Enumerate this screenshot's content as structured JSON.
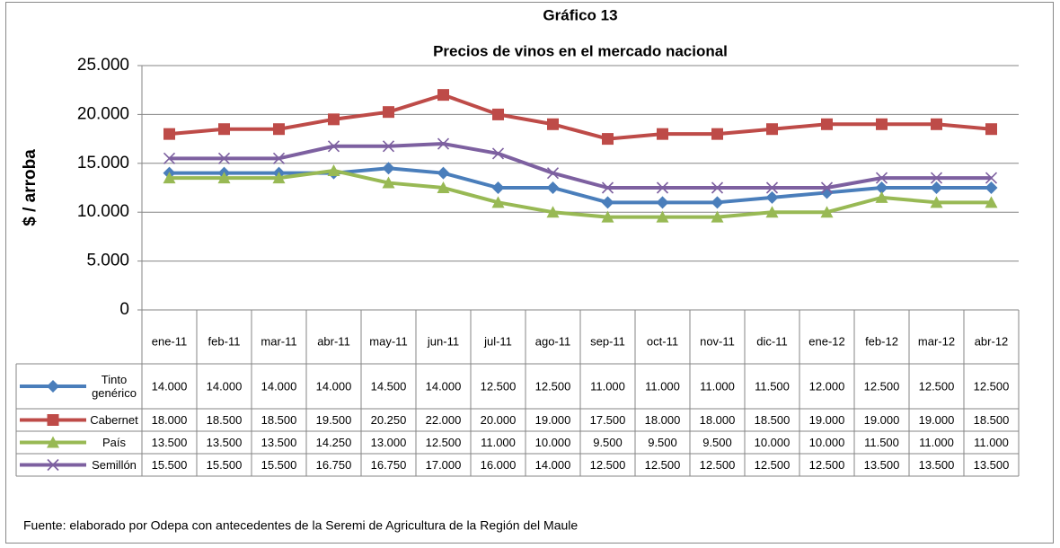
{
  "chart_data": {
    "type": "line",
    "title": "Gráfico 13",
    "subtitle": "Precios de vinos en el mercado nacional",
    "y_label": "$ / arroba",
    "source": "Fuente: elaborado por Odepa con antecedentes de la Seremi de Agricultura de la Región del Maule",
    "categories": [
      "ene-11",
      "feb-11",
      "mar-11",
      "abr-11",
      "may-11",
      "jun-11",
      "jul-11",
      "ago-11",
      "sep-11",
      "oct-11",
      "nov-11",
      "dic-11",
      "ene-12",
      "feb-12",
      "mar-12",
      "abr-12"
    ],
    "ylim": [
      0,
      25000
    ],
    "yticks": [
      0,
      {
        "value": 5000,
        "label": "5.000"
      },
      {
        "value": 10000,
        "label": "10.000"
      },
      {
        "value": 15000,
        "label": "15.000"
      },
      {
        "value": 20000,
        "label": "20.000"
      },
      {
        "value": 25000,
        "label": "25.000"
      }
    ],
    "grid": true,
    "series": [
      {
        "name": "Tinto genérico",
        "color": "#4a7ebb",
        "marker": "diamond",
        "values": [
          14000,
          14000,
          14000,
          14000,
          14500,
          14000,
          12500,
          12500,
          11000,
          11000,
          11000,
          11500,
          12000,
          12500,
          12500,
          12500
        ],
        "value_labels": [
          "14.000",
          "14.000",
          "14.000",
          "14.000",
          "14.500",
          "14.000",
          "12.500",
          "12.500",
          "11.000",
          "11.000",
          "11.000",
          "11.500",
          "12.000",
          "12.500",
          "12.500",
          "12.500"
        ]
      },
      {
        "name": "Cabernet",
        "color": "#be4b48",
        "marker": "square",
        "values": [
          18000,
          18500,
          18500,
          19500,
          20250,
          22000,
          20000,
          19000,
          17500,
          18000,
          18000,
          18500,
          19000,
          19000,
          19000,
          18500
        ],
        "value_labels": [
          "18.000",
          "18.500",
          "18.500",
          "19.500",
          "20.250",
          "22.000",
          "20.000",
          "19.000",
          "17.500",
          "18.000",
          "18.000",
          "18.500",
          "19.000",
          "19.000",
          "19.000",
          "18.500"
        ]
      },
      {
        "name": "País",
        "color": "#98b954",
        "marker": "triangle",
        "values": [
          13500,
          13500,
          13500,
          14250,
          13000,
          12500,
          11000,
          10000,
          9500,
          9500,
          9500,
          10000,
          10000,
          11500,
          11000,
          11000
        ],
        "value_labels": [
          "13.500",
          "13.500",
          "13.500",
          "14.250",
          "13.000",
          "12.500",
          "11.000",
          "10.000",
          "9.500",
          "9.500",
          "9.500",
          "10.000",
          "10.000",
          "11.500",
          "11.000",
          "11.000"
        ]
      },
      {
        "name": "Semillón",
        "color": "#7d60a0",
        "marker": "x",
        "values": [
          15500,
          15500,
          15500,
          16750,
          16750,
          17000,
          16000,
          14000,
          12500,
          12500,
          12500,
          12500,
          12500,
          13500,
          13500,
          13500
        ],
        "value_labels": [
          "15.500",
          "15.500",
          "15.500",
          "16.750",
          "16.750",
          "17.000",
          "16.000",
          "14.000",
          "12.500",
          "12.500",
          "12.500",
          "12.500",
          "12.500",
          "13.500",
          "13.500",
          "13.500"
        ]
      }
    ]
  }
}
